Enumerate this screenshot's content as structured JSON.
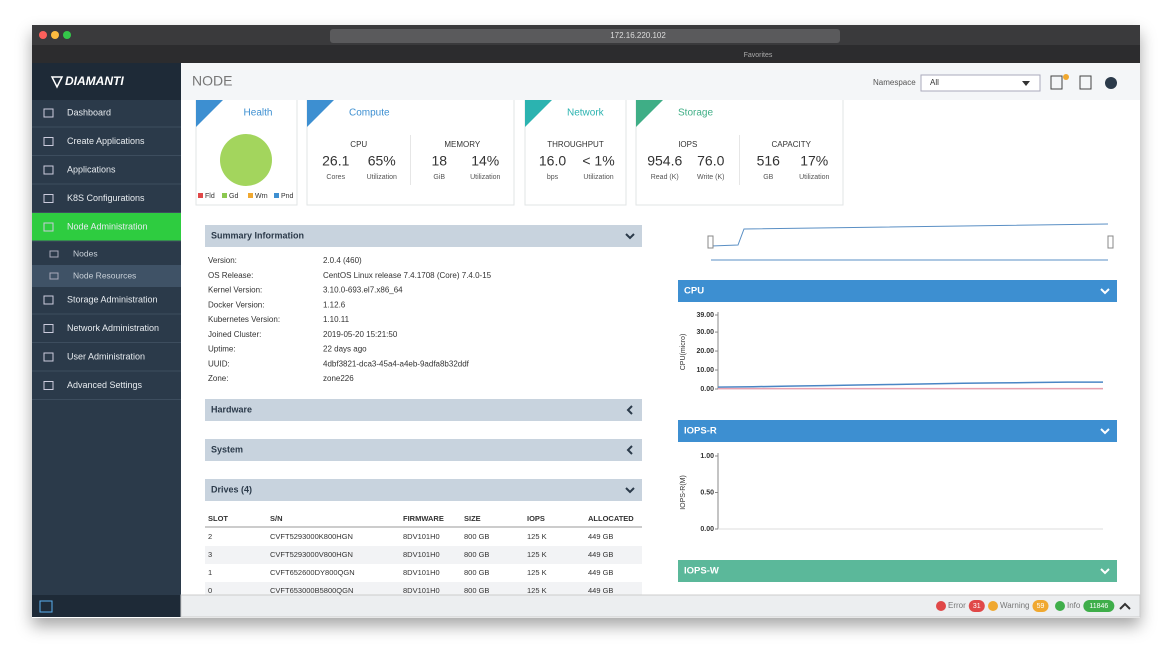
{
  "browser": {
    "url": "172.16.220.102",
    "favorites": "Favorites"
  },
  "sidebar": {
    "brand": "DIAMANTI",
    "menu": [
      {
        "label": "Dashboard"
      },
      {
        "label": "Create Applications"
      },
      {
        "label": "Applications"
      },
      {
        "label": "K8S Configurations"
      },
      {
        "label": "Node Administration",
        "active": true,
        "children": [
          "Nodes",
          "Node Resources"
        ],
        "selected_child": 1
      },
      {
        "label": "Storage Administration"
      },
      {
        "label": "Network Administration"
      },
      {
        "label": "User Administration"
      },
      {
        "label": "Advanced Settings"
      }
    ]
  },
  "header": {
    "title": "NODE",
    "namespace_label": "Namespace",
    "namespace_value": "All"
  },
  "health": {
    "title": "Health",
    "legend": [
      {
        "label": "Fld",
        "color": "#e04848"
      },
      {
        "label": "Gd",
        "color": "#8cc850"
      },
      {
        "label": "Wrn",
        "color": "#f0a830"
      },
      {
        "label": "Pnd",
        "color": "#3d8fd1"
      }
    ]
  },
  "cards": [
    {
      "title": "Compute",
      "color": "#3d8fd1",
      "groups": [
        {
          "label": "CPU",
          "items": [
            {
              "value": "26.1",
              "caption": "Cores"
            },
            {
              "value": "65%",
              "caption": "Utilization"
            }
          ]
        },
        {
          "label": "MEMORY",
          "items": [
            {
              "value": "18",
              "caption": "GiB"
            },
            {
              "value": "14%",
              "caption": "Utilization"
            }
          ]
        }
      ]
    },
    {
      "title": "Network",
      "color": "#2bb3b0",
      "groups": [
        {
          "label": "THROUGHPUT",
          "items": [
            {
              "value": "16.0",
              "caption": "bps"
            },
            {
              "value": "< 1%",
              "caption": "Utilization"
            }
          ]
        }
      ]
    },
    {
      "title": "Storage",
      "color": "#3fae86",
      "groups": [
        {
          "label": "IOPS",
          "items": [
            {
              "value": "954.6",
              "caption": "Read (K)"
            },
            {
              "value": "76.0",
              "caption": "Write (K)"
            }
          ]
        },
        {
          "label": "CAPACITY",
          "items": [
            {
              "value": "516",
              "caption": "GB"
            },
            {
              "value": "17%",
              "caption": "Utilization"
            }
          ]
        }
      ]
    }
  ],
  "summary": {
    "title": "Summary Information",
    "rows": [
      [
        "Version:",
        "2.0.4 (460)"
      ],
      [
        "OS Release:",
        "CentOS Linux release 7.4.1708 (Core) 7.4.0-15"
      ],
      [
        "Kernel Version:",
        "3.10.0-693.el7.x86_64"
      ],
      [
        "Docker Version:",
        "1.12.6"
      ],
      [
        "Kubernetes Version:",
        "1.10.11"
      ],
      [
        "Joined Cluster:",
        "2019-05-20 15:21:50"
      ],
      [
        "Uptime:",
        "22 days ago"
      ],
      [
        "UUID:",
        "4dbf3821-dca3-45a4-a4eb-9adfa8b32ddf"
      ],
      [
        "Zone:",
        "zone226"
      ]
    ]
  },
  "sections": [
    "Hardware",
    "System"
  ],
  "drives": {
    "title": "Drives (4)",
    "columns": [
      "SLOT",
      "S/N",
      "FIRMWARE",
      "SIZE",
      "IOPS",
      "ALLOCATED"
    ],
    "rows": [
      [
        "2",
        "CVFT5293000K800HGN",
        "8DV101H0",
        "800 GB",
        "125 K",
        "449 GB"
      ],
      [
        "3",
        "CVFT5293000V800HGN",
        "8DV101H0",
        "800 GB",
        "125 K",
        "449 GB"
      ],
      [
        "1",
        "CVFT652600DY800QGN",
        "8DV101H0",
        "800 GB",
        "125 K",
        "449 GB"
      ],
      [
        "0",
        "CVFT653000B5800QGN",
        "8DV101H0",
        "800 GB",
        "125 K",
        "449 GB"
      ]
    ]
  },
  "panels": [
    {
      "title": "CPU",
      "color": "#3d8fd1",
      "y_label": "CPU(micro)",
      "ylim": [
        0,
        39
      ],
      "yticks": [
        {
          "value": 39,
          "label": "39.00"
        },
        {
          "value": 30,
          "label": "30.00"
        },
        {
          "value": 20,
          "label": "20.00"
        },
        {
          "value": 10,
          "label": "10.00"
        },
        {
          "value": 0,
          "label": "0.00"
        }
      ],
      "series": [
        {
          "color": "#4a86c5",
          "values": [
            1,
            1.2,
            1.5,
            1.8,
            2.1,
            2.4,
            2.7,
            3,
            3.2,
            3.4,
            3.6,
            3.6
          ]
        },
        {
          "color": "#e8a0b0",
          "values": [
            0.2,
            0.2,
            0.2,
            0.2,
            0.2,
            0.2,
            0.2,
            0.2,
            0.2,
            0.2,
            0.2,
            0.2
          ]
        }
      ]
    },
    {
      "title": "IOPS-R",
      "color": "#3d8fd1",
      "y_label": "IOPS-R(M)",
      "ylim": [
        0,
        1
      ],
      "yticks": [
        {
          "value": 1,
          "label": "1.00"
        },
        {
          "value": 0.5,
          "label": "0.50"
        },
        {
          "value": 0,
          "label": "0.00"
        }
      ],
      "series": []
    },
    {
      "title": "IOPS-W",
      "color": "#5bb89a"
    }
  ],
  "footer": {
    "error_label": "Error",
    "error_count": "31",
    "warning_label": "Warning",
    "warning_count": "59",
    "info_label": "Info",
    "info_count": "11846"
  }
}
